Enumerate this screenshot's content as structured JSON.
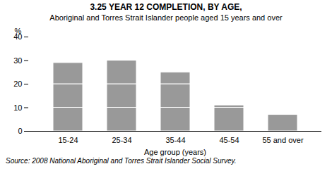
{
  "chart_data": {
    "type": "bar",
    "title": "3.25   YEAR 12 COMPLETION, BY AGE,",
    "subtitle": "Aboriginal and Torres Strait Islander people aged 15 years and over",
    "xlabel": "Age group (years)",
    "ylabel": "%",
    "caption": "Source: 2008 National Aboriginal and Torres Strait Islander Social Survey.",
    "categories": [
      "15-24",
      "25-34",
      "35-44",
      "45-54",
      "55 and over"
    ],
    "series": [
      {
        "values": [
          10,
          10,
          10,
          10,
          7
        ]
      },
      {
        "values": [
          10,
          10,
          10,
          1,
          0
        ]
      },
      {
        "values": [
          9,
          10,
          5,
          0,
          0
        ]
      }
    ],
    "stacked": true,
    "color": "#999999",
    "ylim": [
      0,
      40
    ],
    "yticks": [
      0,
      10,
      20,
      30,
      40
    ],
    "grid": false
  }
}
